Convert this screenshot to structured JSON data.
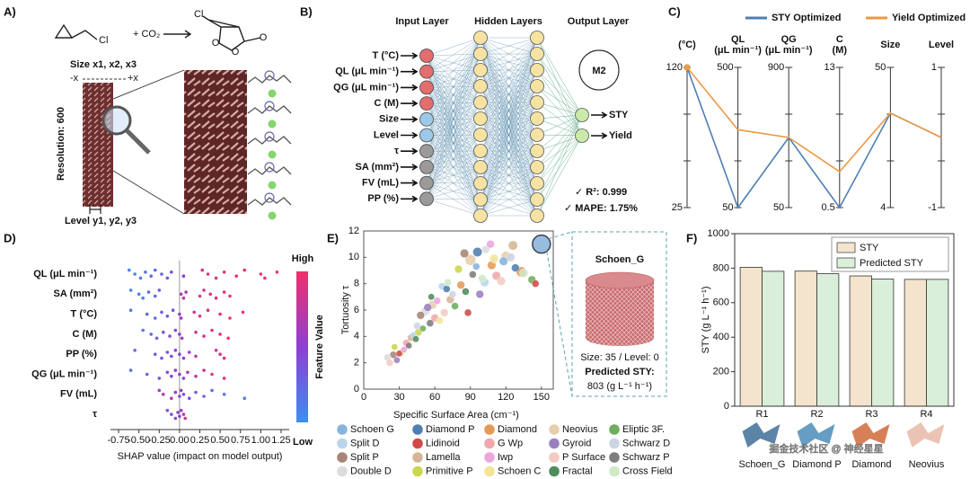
{
  "panel_a": {
    "label": "A)",
    "reactant_atom": "Cl",
    "plus": "+ CO₂",
    "product_atom": "Cl",
    "product_oxygens": [
      "O",
      "O",
      "O"
    ],
    "size_label": "Size x1, x2, x3",
    "minus_x": "-x",
    "plus_x": "+x",
    "resolution": "Resolution: 600",
    "level_label": "Level y1, y2, y3"
  },
  "panel_b": {
    "label": "B)",
    "input_title": "Input Layer",
    "hidden_title": "Hidden Layers",
    "output_title": "Output Layer",
    "inputs": [
      "T (°C)",
      "QL (μL min⁻¹)",
      "QG (μL min⁻¹)",
      "C (M)",
      "Size",
      "Level",
      "τ",
      "SA (mm²)",
      "FV (mL)",
      "PP (%)"
    ],
    "input_colors": [
      "#e46d6d",
      "#e46d6d",
      "#e46d6d",
      "#e46d6d",
      "#9cc9ea",
      "#9cc9ea",
      "#9a9a9a",
      "#9a9a9a",
      "#9a9a9a",
      "#9a9a9a"
    ],
    "outputs": [
      "STY",
      "Yield"
    ],
    "model": "M2",
    "r2": "✓ R²: 0.999",
    "mape": "✓ MAPE: 1.75%"
  },
  "chart_data": [
    {
      "type": "parallel",
      "label": "C)",
      "axes": [
        {
          "label": [
            "(°C)"
          ],
          "lim": [
            25,
            120
          ],
          "ticks": [
            25,
            120
          ]
        },
        {
          "label": [
            "QL",
            "(μL min⁻¹)"
          ],
          "lim": [
            50,
            500
          ],
          "ticks": [
            50,
            500
          ]
        },
        {
          "label": [
            "QG",
            "(μL min⁻¹)"
          ],
          "lim": [
            50,
            900
          ],
          "ticks": [
            50,
            900
          ]
        },
        {
          "label": [
            "C",
            "(M)"
          ],
          "lim": [
            0.5,
            13
          ],
          "ticks": [
            0.5,
            13
          ]
        },
        {
          "label": [
            "Size"
          ],
          "lim": [
            4,
            50
          ],
          "ticks": [
            4,
            50
          ]
        },
        {
          "label": [
            "Level"
          ],
          "lim": [
            -1,
            1
          ],
          "ticks": [
            -1,
            1
          ]
        }
      ],
      "series": [
        {
          "name": "STY Optimized",
          "color": "#4f7fb5",
          "values": [
            120,
            50,
            475,
            0.5,
            35,
            0
          ]
        },
        {
          "name": "Yield Optimized",
          "color": "#ec9a45",
          "values": [
            120,
            300,
            475,
            3.7,
            35,
            0
          ]
        }
      ]
    },
    {
      "type": "beeswarm",
      "label": "D)",
      "categories": [
        "QL (μL min⁻¹)",
        "SA (mm²)",
        "T (°C)",
        "C (M)",
        "PP (%)",
        "QG (μL min⁻¹)",
        "FV (mL)",
        "τ"
      ],
      "values": [
        [
          -0.62,
          -0.55,
          -0.48,
          -0.42,
          -0.35,
          -0.3,
          -0.22,
          -0.15,
          -0.1,
          0.05,
          0.28,
          0.35,
          0.45,
          0.55,
          0.7,
          0.8,
          1.0,
          1.05,
          1.2
        ],
        [
          -0.6,
          -0.5,
          -0.45,
          -0.38,
          -0.3,
          -0.25,
          0.02,
          0.05,
          0.08,
          0.25,
          0.3,
          0.38,
          0.45,
          0.55,
          0.62
        ],
        [
          -0.6,
          -0.4,
          -0.3,
          -0.22,
          -0.15,
          -0.08,
          0.0,
          0.02,
          0.18,
          0.25,
          0.35,
          0.5,
          0.62,
          0.78
        ],
        [
          -0.45,
          -0.35,
          -0.28,
          -0.2,
          -0.12,
          -0.05,
          0.0,
          0.03,
          0.2,
          0.3,
          0.4,
          0.5,
          0.6
        ],
        [
          -0.55,
          -0.3,
          -0.22,
          -0.15,
          -0.1,
          -0.05,
          0.0,
          0.05,
          0.12,
          0.2,
          0.45,
          0.5,
          0.55
        ],
        [
          -0.6,
          -0.4,
          -0.25,
          -0.15,
          -0.1,
          -0.05,
          0.0,
          0.05,
          0.1,
          0.2,
          0.3,
          0.4,
          0.55
        ],
        [
          -0.25,
          -0.2,
          -0.1,
          -0.05,
          0.0,
          0.02,
          0.05,
          0.12,
          0.2,
          0.3,
          0.4,
          0.55,
          0.8
        ],
        [
          -0.15,
          -0.1,
          -0.05,
          -0.02,
          0.0,
          0.02,
          0.05,
          0.07
        ]
      ],
      "feature_values": [
        [
          0.05,
          0.1,
          0.1,
          0.15,
          0.2,
          0.2,
          0.3,
          0.35,
          0.4,
          0.5,
          0.8,
          0.85,
          0.8,
          0.9,
          0.9,
          0.95,
          1.0,
          1.0,
          1.0
        ],
        [
          0.05,
          0.1,
          0.1,
          0.2,
          0.2,
          0.3,
          0.6,
          0.7,
          0.7,
          0.85,
          0.85,
          0.9,
          0.9,
          0.95,
          1.0
        ],
        [
          0.1,
          0.2,
          0.25,
          0.3,
          0.35,
          0.4,
          0.5,
          0.55,
          0.8,
          0.85,
          0.85,
          0.9,
          0.95,
          1.0
        ],
        [
          0.15,
          0.2,
          0.3,
          0.35,
          0.4,
          0.45,
          0.5,
          0.6,
          0.8,
          0.85,
          0.9,
          0.9,
          1.0
        ],
        [
          0.2,
          0.3,
          0.35,
          0.4,
          0.45,
          0.5,
          0.5,
          0.55,
          0.6,
          0.7,
          0.85,
          0.9,
          0.95
        ],
        [
          0.2,
          0.3,
          0.35,
          0.4,
          0.45,
          0.5,
          0.5,
          0.55,
          0.6,
          0.7,
          0.8,
          0.85,
          0.9
        ],
        [
          0.6,
          0.65,
          0.7,
          0.5,
          0.45,
          0.5,
          0.4,
          0.35,
          0.3,
          0.25,
          0.2,
          0.15,
          0.1
        ],
        [
          0.3,
          0.4,
          0.45,
          0.5,
          0.5,
          0.6,
          0.7,
          0.8
        ]
      ],
      "xlim": [
        -0.85,
        1.35
      ],
      "xticks": [
        -0.75,
        {
          "value": -0.5,
          "label": "-0.50"
        },
        -0.25,
        {
          "value": 0,
          "label": "0.00"
        },
        0.25,
        {
          "value": 0.5,
          "label": "0.50"
        },
        0.75,
        {
          "value": 1,
          "label": "1.00"
        },
        1.25
      ],
      "xlabel": "SHAP value (impact on model output)",
      "colorbar": {
        "high": "High",
        "low": "Low",
        "title": "Feature Value",
        "colors": [
          "#3d8ef0",
          "#8e3fd4",
          "#f0306a"
        ]
      }
    },
    {
      "type": "bubble",
      "label": "E)",
      "xlabel": "Specific Surface Area (cm⁻¹)",
      "ylabel": "Tortuosity τ",
      "xlim": [
        0,
        160
      ],
      "xticks": [
        0,
        30,
        60,
        90,
        120,
        150
      ],
      "ylim": [
        0,
        12
      ],
      "yticks": [
        0,
        2,
        4,
        6,
        8,
        10,
        12
      ],
      "series": [
        {
          "name": "Schoen G",
          "color": "#88b4dc",
          "x": [
            150,
            118,
            95
          ],
          "y": [
            11,
            9.7,
            9.3
          ],
          "size": [
            40,
            14,
            10
          ]
        },
        {
          "name": "Split D",
          "color": "#b9d5ec",
          "x": [
            102,
            66,
            42
          ],
          "y": [
            8.1,
            7.8,
            4.1
          ],
          "size": [
            14,
            10,
            8
          ]
        },
        {
          "name": "Split P",
          "color": "#a68676",
          "x": [
            85,
            48,
            25
          ],
          "y": [
            10.3,
            5.6,
            2.6
          ],
          "size": [
            14,
            12,
            10
          ]
        },
        {
          "name": "Double D",
          "color": "#dcdcdc",
          "x": [
            103,
            52,
            20
          ],
          "y": [
            10.6,
            5.9,
            2.4
          ],
          "size": [
            12,
            14,
            10
          ]
        },
        {
          "name": "Diamond P",
          "color": "#4f7fb0",
          "x": [
            96,
            70,
            128
          ],
          "y": [
            10.4,
            7.6,
            9.2
          ],
          "size": [
            16,
            10,
            12
          ]
        },
        {
          "name": "Lidinoid",
          "color": "#cf4b4b",
          "x": [
            145,
            88,
            30
          ],
          "y": [
            8.0,
            5.8,
            2.7
          ],
          "size": [
            10,
            10,
            8
          ]
        },
        {
          "name": "Lamella",
          "color": "#d4b796",
          "x": [
            126,
            73,
            40
          ],
          "y": [
            10.9,
            6.8,
            3.9
          ],
          "size": [
            16,
            12,
            10
          ]
        },
        {
          "name": "Primitive P",
          "color": "#cbd74f",
          "x": [
            80,
            46,
            26
          ],
          "y": [
            9.1,
            4.3,
            3.2
          ],
          "size": [
            12,
            10,
            8
          ]
        },
        {
          "name": "Diamond",
          "color": "#e59a5a",
          "x": [
            133,
            108,
            82
          ],
          "y": [
            8.9,
            9.4,
            7.9
          ],
          "size": [
            18,
            14,
            12
          ]
        },
        {
          "name": "G Wp",
          "color": "#f0a7ad",
          "x": [
            112,
            60,
            36
          ],
          "y": [
            8.6,
            5.4,
            3.5
          ],
          "size": [
            14,
            12,
            10
          ]
        },
        {
          "name": "Iwp",
          "color": "#eba6df",
          "x": [
            107,
            62,
            34
          ],
          "y": [
            11.0,
            6.7,
            3.0
          ],
          "size": [
            12,
            10,
            8
          ]
        },
        {
          "name": "Schoen C",
          "color": "#f1e596",
          "x": [
            110,
            64,
            32
          ],
          "y": [
            9.9,
            5.2,
            2.8
          ],
          "size": [
            14,
            10,
            10
          ]
        },
        {
          "name": "Neovius",
          "color": "#e6cfae",
          "x": [
            90,
            58,
            120
          ],
          "y": [
            9.8,
            6.4,
            10.1
          ],
          "size": [
            20,
            14,
            16
          ]
        },
        {
          "name": "Gyroid",
          "color": "#9b80c0",
          "x": [
            98,
            54,
            28
          ],
          "y": [
            7.2,
            6.2,
            2.2
          ],
          "size": [
            12,
            12,
            8
          ]
        },
        {
          "name": "P Surface",
          "color": "#f3cbc2",
          "x": [
            116,
            68,
            22
          ],
          "y": [
            8.2,
            5.8,
            2.0
          ],
          "size": [
            14,
            12,
            10
          ]
        },
        {
          "name": "Fractal",
          "color": "#4e8d5c",
          "x": [
            86,
            57,
            44
          ],
          "y": [
            7.4,
            7.0,
            3.8
          ],
          "size": [
            10,
            8,
            8
          ]
        },
        {
          "name": "Eliptic 3F.",
          "color": "#6fae5d",
          "x": [
            142,
            77,
            50
          ],
          "y": [
            8.3,
            6.3,
            4.6
          ],
          "size": [
            12,
            10,
            8
          ]
        },
        {
          "name": "Schwarz D",
          "color": "#cdd5e3",
          "x": [
            124,
            75,
            45
          ],
          "y": [
            10.0,
            7.2,
            4.8
          ],
          "size": [
            14,
            10,
            10
          ]
        },
        {
          "name": "Schwarz P",
          "color": "#7d7d7d",
          "x": [
            92,
            56,
            38
          ],
          "y": [
            8.7,
            5.0,
            3.3
          ],
          "size": [
            10,
            10,
            8
          ]
        },
        {
          "name": "Cross Field",
          "color": "#cfeac7",
          "x": [
            135,
            100,
            71
          ],
          "y": [
            8.8,
            8.4,
            8.1
          ],
          "size": [
            14,
            12,
            10
          ]
        }
      ],
      "callout": {
        "title": "Schoen_G",
        "params": "Size: 35 / Level: 0",
        "stat_label": "Predicted STY:",
        "stat_value": "803 (g L⁻¹ h⁻¹)"
      }
    },
    {
      "type": "bar",
      "label": "F)",
      "categories": [
        "R1",
        "R2",
        "R3",
        "R4"
      ],
      "ylabel": "STY (g L⁻¹ h⁻¹)",
      "ylim": [
        0,
        1000
      ],
      "yticks": [
        0,
        200,
        400,
        600,
        800,
        1000
      ],
      "series": [
        {
          "name": "STY",
          "color": "#f4e4cd",
          "values": [
            805,
            783,
            755,
            735
          ]
        },
        {
          "name": "Predicted STY",
          "color": "#d9efd9",
          "values": [
            782,
            768,
            737,
            735
          ]
        }
      ],
      "legend": "upper right",
      "structures": [
        "Schoen_G",
        "Diamond P",
        "Diamond",
        "Neovius"
      ],
      "structure_colors": [
        "#3f6f96",
        "#4a8cb8",
        "#d06a3a",
        "#e8b8a8"
      ]
    }
  ],
  "watermark": "掘金技术社区 @ 神经星星"
}
